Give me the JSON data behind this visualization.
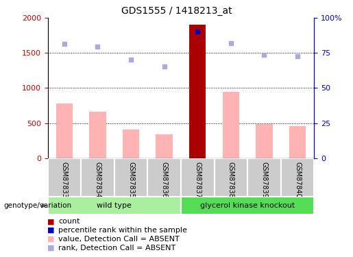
{
  "title": "GDS1555 / 1418213_at",
  "samples": [
    "GSM87833",
    "GSM87834",
    "GSM87835",
    "GSM87836",
    "GSM87837",
    "GSM87838",
    "GSM87839",
    "GSM87840"
  ],
  "pink_bar_values": [
    775,
    660,
    410,
    340,
    1900,
    950,
    490,
    460
  ],
  "blue_dot_values": [
    1630,
    1590,
    1410,
    1305,
    1810,
    1640,
    1470,
    1450
  ],
  "red_bar_index": 4,
  "blue_square_index": 4,
  "left_ylim": [
    0,
    2000
  ],
  "right_ylim": [
    0,
    100
  ],
  "left_yticks": [
    0,
    500,
    1000,
    1500,
    2000
  ],
  "right_yticks": [
    0,
    25,
    50,
    75,
    100
  ],
  "right_yticklabels": [
    "0",
    "25",
    "50",
    "75",
    "100%"
  ],
  "left_ycolor": "#cc0000",
  "right_ycolor": "#0000cc",
  "grid_values": [
    500,
    1000,
    1500
  ],
  "wild_type_label": "wild type",
  "knockout_label": "glycerol kinase knockout",
  "genotype_label": "genotype/variation",
  "pink_bar_color": "#ffb3b3",
  "red_bar_color": "#aa0000",
  "blue_dot_color": "#aaaadd",
  "blue_square_color": "#0000bb",
  "tick_area_color": "#cccccc",
  "wild_type_bg": "#aaeea0",
  "knockout_bg": "#55dd55",
  "plot_bg": "#ffffff",
  "n_wild": 4,
  "n_knockout": 4,
  "title_fontsize": 10,
  "tick_fontsize": 8,
  "sample_fontsize": 7,
  "legend_fontsize": 8,
  "bar_width": 0.5,
  "legend_labels": [
    "count",
    "percentile rank within the sample",
    "value, Detection Call = ABSENT",
    "rank, Detection Call = ABSENT"
  ],
  "legend_colors": [
    "#aa0000",
    "#0000bb",
    "#ffb3b3",
    "#aaaadd"
  ]
}
